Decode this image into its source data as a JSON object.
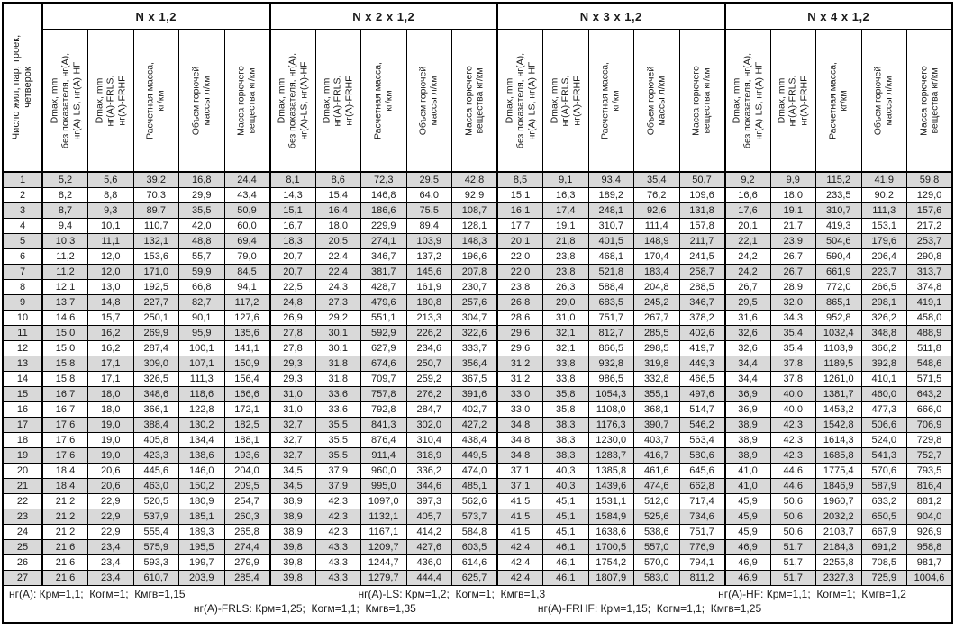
{
  "table": {
    "corner_header": "Число жил, пар, троек,\nчетверок",
    "groups": [
      {
        "id": "n-x-1-2",
        "title": "N x 1,2"
      },
      {
        "id": "n-x-2-1-2",
        "title": "N x 2 x 1,2"
      },
      {
        "id": "n-x-3-1-2",
        "title": "N x 3 x 1,2"
      },
      {
        "id": "n-x-4-1-2",
        "title": "N x 4 x 1,2"
      }
    ],
    "col_headers": [
      {
        "id": "dmax-base",
        "label": "Dmax, mm\nбез показателя, нг(А),\nнг(А)-LS, нг(А)-HF"
      },
      {
        "id": "dmax-frls-frhf",
        "label": "Dmax, mm\nнг(А)-FRLS,\nнг(А)-FRHF"
      },
      {
        "id": "design-mass",
        "label": "Расчетная масса,\nкг/км"
      },
      {
        "id": "burn-volume",
        "label": "Объем горючей\nмассы л/км"
      },
      {
        "id": "burn-mass",
        "label": "Масса горючего\nвещества кг/км"
      }
    ],
    "rows": [
      {
        "n": "1",
        "v": [
          "5,2",
          "5,6",
          "39,2",
          "16,8",
          "24,4",
          "8,1",
          "8,6",
          "72,3",
          "29,5",
          "42,8",
          "8,5",
          "9,1",
          "93,4",
          "35,4",
          "50,7",
          "9,2",
          "9,9",
          "115,2",
          "41,9",
          "59,8"
        ]
      },
      {
        "n": "2",
        "v": [
          "8,2",
          "8,8",
          "70,3",
          "29,9",
          "43,4",
          "14,3",
          "15,4",
          "146,8",
          "64,0",
          "92,9",
          "15,1",
          "16,3",
          "189,2",
          "76,2",
          "109,6",
          "16,6",
          "18,0",
          "233,5",
          "90,2",
          "129,0"
        ]
      },
      {
        "n": "3",
        "v": [
          "8,7",
          "9,3",
          "89,7",
          "35,5",
          "50,9",
          "15,1",
          "16,4",
          "186,6",
          "75,5",
          "108,7",
          "16,1",
          "17,4",
          "248,1",
          "92,6",
          "131,8",
          "17,6",
          "19,1",
          "310,7",
          "111,3",
          "157,6"
        ]
      },
      {
        "n": "4",
        "v": [
          "9,4",
          "10,1",
          "110,7",
          "42,0",
          "60,0",
          "16,7",
          "18,0",
          "229,9",
          "89,4",
          "128,1",
          "17,7",
          "19,1",
          "310,7",
          "111,4",
          "157,8",
          "20,1",
          "21,7",
          "419,3",
          "153,1",
          "217,2"
        ]
      },
      {
        "n": "5",
        "v": [
          "10,3",
          "11,1",
          "132,1",
          "48,8",
          "69,4",
          "18,3",
          "20,5",
          "274,1",
          "103,9",
          "148,3",
          "20,1",
          "21,8",
          "401,5",
          "148,9",
          "211,7",
          "22,1",
          "23,9",
          "504,6",
          "179,6",
          "253,7"
        ]
      },
      {
        "n": "6",
        "v": [
          "11,2",
          "12,0",
          "153,6",
          "55,7",
          "79,0",
          "20,7",
          "22,4",
          "346,7",
          "137,2",
          "196,6",
          "22,0",
          "23,8",
          "468,1",
          "170,4",
          "241,5",
          "24,2",
          "26,7",
          "590,4",
          "206,4",
          "290,8"
        ]
      },
      {
        "n": "7",
        "v": [
          "11,2",
          "12,0",
          "171,0",
          "59,9",
          "84,5",
          "20,7",
          "22,4",
          "381,7",
          "145,6",
          "207,8",
          "22,0",
          "23,8",
          "521,8",
          "183,4",
          "258,7",
          "24,2",
          "26,7",
          "661,9",
          "223,7",
          "313,7"
        ]
      },
      {
        "n": "8",
        "v": [
          "12,1",
          "13,0",
          "192,5",
          "66,8",
          "94,1",
          "22,5",
          "24,3",
          "428,7",
          "161,9",
          "230,7",
          "23,8",
          "26,3",
          "588,4",
          "204,8",
          "288,5",
          "26,7",
          "28,9",
          "772,0",
          "266,5",
          "374,8"
        ]
      },
      {
        "n": "9",
        "v": [
          "13,7",
          "14,8",
          "227,7",
          "82,7",
          "117,2",
          "24,8",
          "27,3",
          "479,6",
          "180,8",
          "257,6",
          "26,8",
          "29,0",
          "683,5",
          "245,2",
          "346,7",
          "29,5",
          "32,0",
          "865,1",
          "298,1",
          "419,1"
        ]
      },
      {
        "n": "10",
        "v": [
          "14,6",
          "15,7",
          "250,1",
          "90,1",
          "127,6",
          "26,9",
          "29,2",
          "551,1",
          "213,3",
          "304,7",
          "28,6",
          "31,0",
          "751,7",
          "267,7",
          "378,2",
          "31,6",
          "34,3",
          "952,8",
          "326,2",
          "458,0"
        ]
      },
      {
        "n": "11",
        "v": [
          "15,0",
          "16,2",
          "269,9",
          "95,9",
          "135,6",
          "27,8",
          "30,1",
          "592,9",
          "226,2",
          "322,6",
          "29,6",
          "32,1",
          "812,7",
          "285,5",
          "402,6",
          "32,6",
          "35,4",
          "1032,4",
          "348,8",
          "488,9"
        ]
      },
      {
        "n": "12",
        "v": [
          "15,0",
          "16,2",
          "287,4",
          "100,1",
          "141,1",
          "27,8",
          "30,1",
          "627,9",
          "234,6",
          "333,7",
          "29,6",
          "32,1",
          "866,5",
          "298,5",
          "419,7",
          "32,6",
          "35,4",
          "1103,9",
          "366,2",
          "511,8"
        ]
      },
      {
        "n": "13",
        "v": [
          "15,8",
          "17,1",
          "309,0",
          "107,1",
          "150,9",
          "29,3",
          "31,8",
          "674,6",
          "250,7",
          "356,4",
          "31,2",
          "33,8",
          "932,8",
          "319,8",
          "449,3",
          "34,4",
          "37,8",
          "1189,5",
          "392,8",
          "548,6"
        ]
      },
      {
        "n": "14",
        "v": [
          "15,8",
          "17,1",
          "326,5",
          "111,3",
          "156,4",
          "29,3",
          "31,8",
          "709,7",
          "259,2",
          "367,5",
          "31,2",
          "33,8",
          "986,5",
          "332,8",
          "466,5",
          "34,4",
          "37,8",
          "1261,0",
          "410,1",
          "571,5"
        ]
      },
      {
        "n": "15",
        "v": [
          "16,7",
          "18,0",
          "348,6",
          "118,6",
          "166,6",
          "31,0",
          "33,6",
          "757,8",
          "276,2",
          "391,6",
          "33,0",
          "35,8",
          "1054,3",
          "355,1",
          "497,6",
          "36,9",
          "40,0",
          "1381,7",
          "460,0",
          "643,2"
        ]
      },
      {
        "n": "16",
        "v": [
          "16,7",
          "18,0",
          "366,1",
          "122,8",
          "172,1",
          "31,0",
          "33,6",
          "792,8",
          "284,7",
          "402,7",
          "33,0",
          "35,8",
          "1108,0",
          "368,1",
          "514,7",
          "36,9",
          "40,0",
          "1453,2",
          "477,3",
          "666,0"
        ]
      },
      {
        "n": "17",
        "v": [
          "17,6",
          "19,0",
          "388,4",
          "130,2",
          "182,5",
          "32,7",
          "35,5",
          "841,3",
          "302,0",
          "427,2",
          "34,8",
          "38,3",
          "1176,3",
          "390,7",
          "546,2",
          "38,9",
          "42,3",
          "1542,8",
          "506,6",
          "706,9"
        ]
      },
      {
        "n": "18",
        "v": [
          "17,6",
          "19,0",
          "405,8",
          "134,4",
          "188,1",
          "32,7",
          "35,5",
          "876,4",
          "310,4",
          "438,4",
          "34,8",
          "38,3",
          "1230,0",
          "403,7",
          "563,4",
          "38,9",
          "42,3",
          "1614,3",
          "524,0",
          "729,8"
        ]
      },
      {
        "n": "19",
        "v": [
          "17,6",
          "19,0",
          "423,3",
          "138,6",
          "193,6",
          "32,7",
          "35,5",
          "911,4",
          "318,9",
          "449,5",
          "34,8",
          "38,3",
          "1283,7",
          "416,7",
          "580,6",
          "38,9",
          "42,3",
          "1685,8",
          "541,3",
          "752,7"
        ]
      },
      {
        "n": "20",
        "v": [
          "18,4",
          "20,6",
          "445,6",
          "146,0",
          "204,0",
          "34,5",
          "37,9",
          "960,0",
          "336,2",
          "474,0",
          "37,1",
          "40,3",
          "1385,8",
          "461,6",
          "645,6",
          "41,0",
          "44,6",
          "1775,4",
          "570,6",
          "793,5"
        ]
      },
      {
        "n": "21",
        "v": [
          "18,4",
          "20,6",
          "463,0",
          "150,2",
          "209,5",
          "34,5",
          "37,9",
          "995,0",
          "344,6",
          "485,1",
          "37,1",
          "40,3",
          "1439,6",
          "474,6",
          "662,8",
          "41,0",
          "44,6",
          "1846,9",
          "587,9",
          "816,4"
        ]
      },
      {
        "n": "22",
        "v": [
          "21,2",
          "22,9",
          "520,5",
          "180,9",
          "254,7",
          "38,9",
          "42,3",
          "1097,0",
          "397,3",
          "562,6",
          "41,5",
          "45,1",
          "1531,1",
          "512,6",
          "717,4",
          "45,9",
          "50,6",
          "1960,7",
          "633,2",
          "881,2"
        ]
      },
      {
        "n": "23",
        "v": [
          "21,2",
          "22,9",
          "537,9",
          "185,1",
          "260,3",
          "38,9",
          "42,3",
          "1132,1",
          "405,7",
          "573,7",
          "41,5",
          "45,1",
          "1584,9",
          "525,6",
          "734,6",
          "45,9",
          "50,6",
          "2032,2",
          "650,5",
          "904,0"
        ]
      },
      {
        "n": "24",
        "v": [
          "21,2",
          "22,9",
          "555,4",
          "189,3",
          "265,8",
          "38,9",
          "42,3",
          "1167,1",
          "414,2",
          "584,8",
          "41,5",
          "45,1",
          "1638,6",
          "538,6",
          "751,7",
          "45,9",
          "50,6",
          "2103,7",
          "667,9",
          "926,9"
        ]
      },
      {
        "n": "25",
        "v": [
          "21,6",
          "23,4",
          "575,9",
          "195,5",
          "274,4",
          "39,8",
          "43,3",
          "1209,7",
          "427,6",
          "603,5",
          "42,4",
          "46,1",
          "1700,5",
          "557,0",
          "776,9",
          "46,9",
          "51,7",
          "2184,3",
          "691,2",
          "958,8"
        ]
      },
      {
        "n": "26",
        "v": [
          "21,6",
          "23,4",
          "593,3",
          "199,7",
          "279,9",
          "39,8",
          "43,3",
          "1244,7",
          "436,0",
          "614,6",
          "42,4",
          "46,1",
          "1754,2",
          "570,0",
          "794,1",
          "46,9",
          "51,7",
          "2255,8",
          "708,5",
          "981,7"
        ]
      },
      {
        "n": "27",
        "v": [
          "21,6",
          "23,4",
          "610,7",
          "203,9",
          "285,4",
          "39,8",
          "43,3",
          "1279,7",
          "444,4",
          "625,7",
          "42,4",
          "46,1",
          "1807,9",
          "583,0",
          "811,2",
          "46,9",
          "51,7",
          "2327,3",
          "725,9",
          "1004,6"
        ]
      }
    ]
  },
  "footnotes": {
    "line1": [
      "нг(А): Крм=1,1;  Когм=1;  Кмгв=1,15",
      "нг(А)-LS: Крм=1,2;  Когм=1;  Кмгв=1,3",
      "нг(А)-HF: Крм=1,1;  Когм=1;  Кмгв=1,2"
    ],
    "line2": [
      "нг(А)-FRLS: Крм=1,25;  Когм=1,1;  Кмгв=1,35",
      "нг(А)-FRHF: Крм=1,15;  Когм=1,1;  Кмгв=1,25"
    ]
  },
  "colors": {
    "row_alt": "#d9d9d9",
    "border": "#000000",
    "text": "#1a1a1a"
  }
}
